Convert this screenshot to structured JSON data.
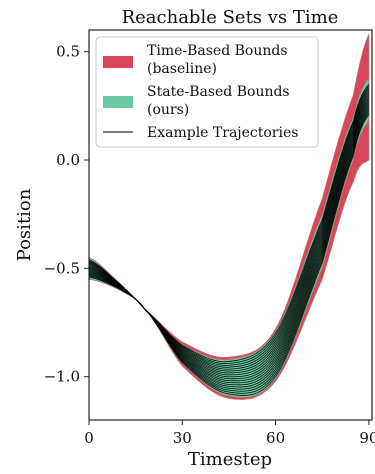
{
  "chart_data": {
    "type": "area",
    "title": "Reachable Sets vs Time",
    "xlabel": "Timestep",
    "ylabel": "Position",
    "xlim": [
      0,
      91
    ],
    "ylim": [
      -1.2,
      0.6
    ],
    "xticks": [
      0,
      30,
      60,
      90
    ],
    "yticks": [
      0.5,
      0.0,
      -0.5,
      -1.0
    ],
    "xtick_labels": [
      "0",
      "30",
      "60",
      "90"
    ],
    "ytick_labels": [
      "0.5",
      "0.0",
      "−0.5",
      "−1.0"
    ],
    "grid": false,
    "legend_position": "top-left",
    "colors": {
      "time_based": "#d9465a",
      "state_based": "#6cc8a3",
      "trajectory": "#000000",
      "band_edge": "#c26b6b"
    },
    "series": [
      {
        "name": "Time-Based Bounds\n(baseline)",
        "kind": "band",
        "x": [
          0,
          10,
          18,
          30,
          45,
          60,
          75,
          85,
          90
        ],
        "lower": [
          -0.55,
          -0.6,
          -0.69,
          -0.95,
          -1.1,
          -1.02,
          -0.55,
          -0.1,
          0.0
        ],
        "upper": [
          -0.45,
          -0.57,
          -0.69,
          -0.84,
          -0.91,
          -0.78,
          -0.18,
          0.3,
          0.58
        ]
      },
      {
        "name": "State-Based Bounds\n(ours)",
        "kind": "band",
        "x": [
          0,
          10,
          18,
          30,
          45,
          60,
          75,
          85,
          90
        ],
        "lower": [
          -0.55,
          -0.6,
          -0.69,
          -0.94,
          -1.09,
          -1.01,
          -0.5,
          0.0,
          0.18
        ],
        "upper": [
          -0.45,
          -0.57,
          -0.69,
          -0.85,
          -0.92,
          -0.79,
          -0.25,
          0.2,
          0.38
        ]
      },
      {
        "name": "Example Trajectories",
        "kind": "trajectories",
        "x": [
          0,
          10,
          18,
          30,
          45,
          60,
          75,
          85,
          90
        ],
        "start_range": [
          -0.54,
          -0.46
        ],
        "center": [
          -0.5,
          -0.585,
          -0.69,
          -0.895,
          -1.005,
          -0.9,
          -0.375,
          0.1,
          0.28
        ],
        "half_spread": [
          0.04,
          0.012,
          0.0,
          0.04,
          0.075,
          0.1,
          0.1,
          0.08,
          0.07
        ],
        "count": 18
      }
    ]
  }
}
